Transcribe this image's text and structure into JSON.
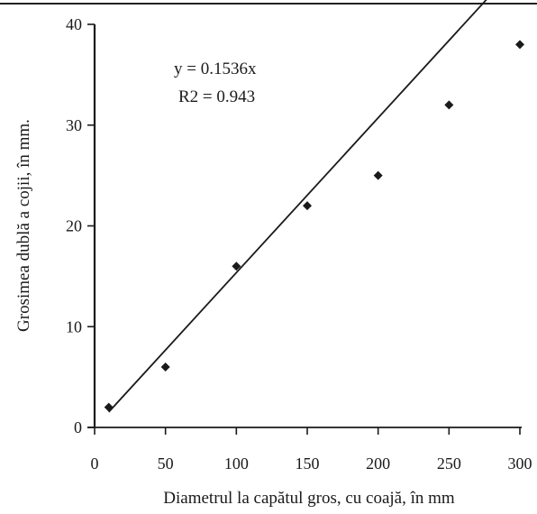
{
  "chart_data": {
    "type": "scatter",
    "title": "",
    "xlabel": "Diametrul la capătul gros, cu coajă, în mm",
    "ylabel": "Grosimea dublă a cojii, în mm.",
    "xlim": [
      0,
      300
    ],
    "ylim": [
      0,
      40
    ],
    "xticks": [
      0,
      50,
      100,
      150,
      200,
      250,
      300
    ],
    "yticks": [
      0,
      10,
      20,
      30,
      40
    ],
    "grid": false,
    "legend": "none",
    "points": [
      {
        "x": 10,
        "y": 2
      },
      {
        "x": 50,
        "y": 6
      },
      {
        "x": 100,
        "y": 16
      },
      {
        "x": 150,
        "y": 22
      },
      {
        "x": 200,
        "y": 25
      },
      {
        "x": 250,
        "y": 32
      },
      {
        "x": 300,
        "y": 38
      }
    ],
    "trendline": {
      "slope": 0.1536,
      "intercept": 0,
      "x_from": 10,
      "x_to": 302
    },
    "annotations": [
      "y = 0.1536x",
      "R2 = 0.943"
    ],
    "colors": {
      "ink": "#1a1a1a"
    }
  }
}
